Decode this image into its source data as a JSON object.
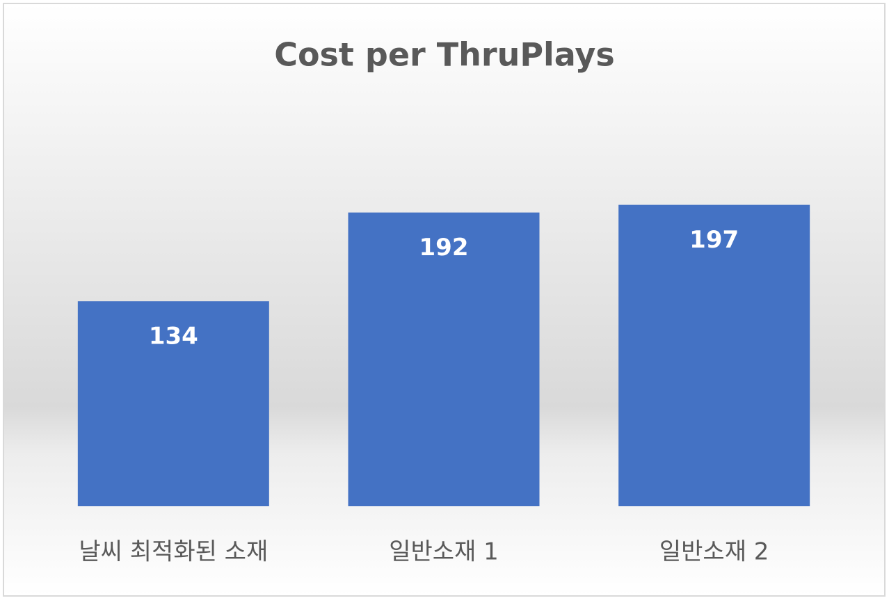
{
  "chart_data": {
    "type": "bar",
    "title": "Cost per ThruPlays",
    "categories": [
      "날씨 최적화된 소재",
      "일반소재 1",
      "일반소재 2"
    ],
    "values": [
      134,
      192,
      197
    ],
    "color": "#4472c4"
  }
}
